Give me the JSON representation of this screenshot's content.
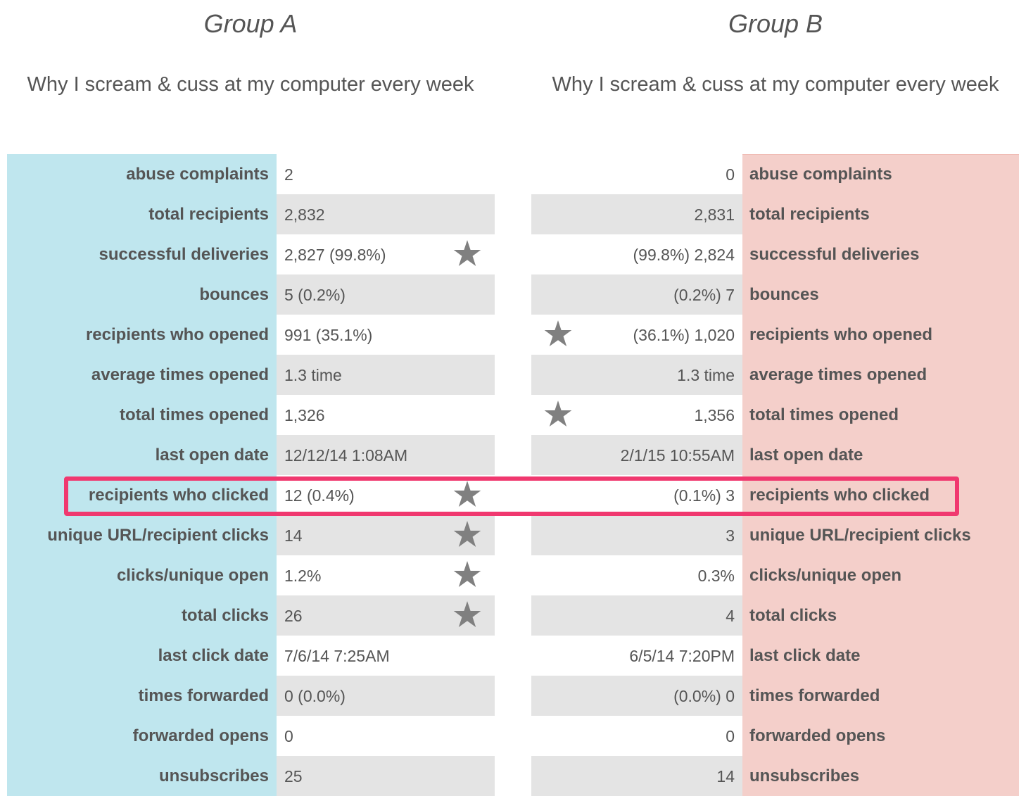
{
  "group_a": {
    "title": "Group A",
    "subject": "Why I scream & cuss at my computer every week",
    "rows": [
      {
        "label": "abuse complaints",
        "value": "2",
        "star": false
      },
      {
        "label": "total recipients",
        "value": "2,832",
        "star": false
      },
      {
        "label": "successful deliveries",
        "value": "2,827 (99.8%)",
        "star": true
      },
      {
        "label": "bounces",
        "value": "5 (0.2%)",
        "star": false
      },
      {
        "label": "recipients who opened",
        "value": "991 (35.1%)",
        "star": false
      },
      {
        "label": "average times opened",
        "value": "1.3 time",
        "star": false
      },
      {
        "label": "total times opened",
        "value": "1,326",
        "star": false
      },
      {
        "label": "last open date",
        "value": "12/12/14 1:08AM",
        "star": false
      },
      {
        "label": "recipients who clicked",
        "value": "12 (0.4%)",
        "star": true
      },
      {
        "label": "unique URL/recipient clicks",
        "value": "14",
        "star": true
      },
      {
        "label": "clicks/unique open",
        "value": "1.2%",
        "star": true
      },
      {
        "label": "total clicks",
        "value": "26",
        "star": true
      },
      {
        "label": "last click date",
        "value": "7/6/14 7:25AM",
        "star": false
      },
      {
        "label": "times forwarded",
        "value": "0 (0.0%)",
        "star": false
      },
      {
        "label": "forwarded opens",
        "value": "0",
        "star": false
      },
      {
        "label": "unsubscribes",
        "value": "25",
        "star": false
      }
    ]
  },
  "group_b": {
    "title": "Group B",
    "subject": "Why I scream & cuss at my computer every week",
    "rows": [
      {
        "label": "abuse complaints",
        "value": "0",
        "star": false
      },
      {
        "label": "total recipients",
        "value": "2,831",
        "star": false
      },
      {
        "label": "successful deliveries",
        "value": "(99.8%) 2,824",
        "star": false
      },
      {
        "label": "bounces",
        "value": "(0.2%) 7",
        "star": false
      },
      {
        "label": "recipients who opened",
        "value": "(36.1%) 1,020",
        "star": true
      },
      {
        "label": "average times opened",
        "value": "1.3 time",
        "star": false
      },
      {
        "label": "total times opened",
        "value": "1,356",
        "star": true
      },
      {
        "label": "last open date",
        "value": "2/1/15 10:55AM",
        "star": false
      },
      {
        "label": "recipients who clicked",
        "value": "(0.1%) 3",
        "star": false
      },
      {
        "label": "unique URL/recipient clicks",
        "value": "3",
        "star": false
      },
      {
        "label": "clicks/unique open",
        "value": "0.3%",
        "star": false
      },
      {
        "label": "total clicks",
        "value": "4",
        "star": false
      },
      {
        "label": "last click date",
        "value": "6/5/14 7:20PM",
        "star": false
      },
      {
        "label": "times forwarded",
        "value": "(0.0%) 0",
        "star": false
      },
      {
        "label": "forwarded opens",
        "value": "0",
        "star": false
      },
      {
        "label": "unsubscribes",
        "value": "14",
        "star": false
      }
    ]
  },
  "highlighted_row": "recipients who clicked",
  "colors": {
    "group_a_label_bg": "#bfe6ee",
    "group_b_label_bg": "#f4cfca",
    "shaded_row_bg": "#e4e4e4",
    "highlight_border": "#f0386f",
    "star": "#808080"
  },
  "icons": {
    "winner_marker": "star-icon"
  }
}
